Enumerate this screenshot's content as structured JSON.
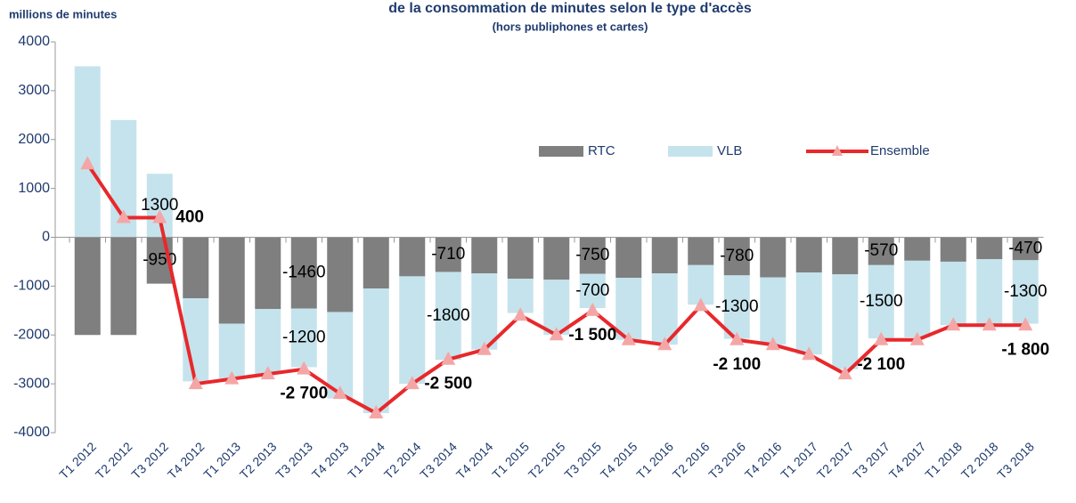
{
  "chart_data": {
    "type": "bar_line",
    "title": "de la consommation de minutes selon le type d'accès",
    "subtitle": "(hors publiphones et cartes)",
    "y_label": "millions de minutes",
    "categories": [
      "T1 2012",
      "T2 2012",
      "T3 2012",
      "T4 2012",
      "T1 2013",
      "T2 2013",
      "T3 2013",
      "T4 2013",
      "T1 2014",
      "T2 2014",
      "T3 2014",
      "T4 2014",
      "T1 2015",
      "T2 2015",
      "T3 2015",
      "T4 2015",
      "T1 2016",
      "T2 2016",
      "T3 2016",
      "T4 2016",
      "T1 2017",
      "T2 2017",
      "T3 2017",
      "T4 2017",
      "T1 2018",
      "T2 2018",
      "T3 2018"
    ],
    "series": [
      {
        "name": "RTC",
        "color": "#7f7f7f",
        "kind": "bar",
        "values": [
          -2000,
          -2000,
          -950,
          -1250,
          -1770,
          -1470,
          -1460,
          -1530,
          -1050,
          -800,
          -710,
          -740,
          -850,
          -870,
          -750,
          -830,
          -740,
          -570,
          -780,
          -820,
          -720,
          -760,
          -570,
          -480,
          -500,
          -450,
          -470
        ],
        "value_labels": [
          null,
          null,
          "-950",
          null,
          null,
          null,
          "-1460",
          null,
          null,
          null,
          "-710",
          null,
          null,
          null,
          "-750",
          null,
          null,
          null,
          "-780",
          null,
          null,
          null,
          "-570",
          null,
          null,
          null,
          "-470"
        ]
      },
      {
        "name": "VLB",
        "color": "#c5e3ec",
        "kind": "bar",
        "values": [
          3500,
          2400,
          1300,
          -1700,
          -1130,
          -1330,
          -1200,
          -1770,
          -2550,
          -2200,
          -1800,
          -1560,
          -700,
          -1130,
          -700,
          -1270,
          -1460,
          -810,
          -1300,
          -1380,
          -1680,
          -1940,
          -1500,
          -1570,
          -1300,
          -1350,
          -1300
        ],
        "value_labels": [
          null,
          null,
          "1300",
          null,
          null,
          null,
          "-1200",
          null,
          null,
          null,
          "-1800",
          null,
          null,
          null,
          "-700",
          null,
          null,
          null,
          "-1300",
          null,
          null,
          null,
          "-1500",
          null,
          null,
          null,
          "-1300"
        ]
      },
      {
        "name": "Ensemble",
        "color": "#e8282b",
        "marker_color": "#f4a6a6",
        "kind": "line",
        "values": [
          1500,
          400,
          400,
          -3000,
          -2900,
          -2800,
          -2700,
          -3200,
          -3600,
          -3000,
          -2500,
          -2300,
          -1600,
          -2000,
          -1500,
          -2100,
          -2200,
          -1400,
          -2100,
          -2200,
          -2400,
          -2800,
          -2100,
          -2100,
          -1800,
          -1800,
          -1800
        ],
        "value_labels": [
          null,
          null,
          "400",
          null,
          null,
          null,
          "-2 700",
          null,
          null,
          null,
          "-2 500",
          null,
          null,
          null,
          "-1 500",
          null,
          null,
          null,
          "-2 100",
          null,
          null,
          null,
          "-2 100",
          null,
          null,
          null,
          "-1 800"
        ]
      }
    ],
    "ylim": [
      -4000,
      4000
    ],
    "yticks": [
      -4000,
      -3000,
      -2000,
      -1000,
      0,
      1000,
      2000,
      3000,
      4000
    ],
    "grid": false,
    "legend": "top-right"
  }
}
